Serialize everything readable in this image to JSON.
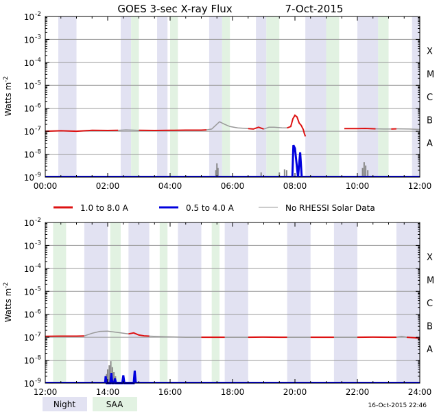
{
  "title": "GOES 3-sec X-ray Flux",
  "date": "7-Oct-2015",
  "timestamp": "16-Oct-2015 22:46",
  "ylabel": "Watts m",
  "ylabel_sup": "-2",
  "colors": {
    "low_channel": "#dd1111",
    "high_channel": "#0000dd",
    "no_rhessi": "#999999",
    "night_band": "#e2e2f2",
    "saa_band": "#e2f2e2",
    "grid": "#999999"
  },
  "legend": {
    "items": [
      {
        "label": "1.0 to 8.0 A",
        "color": "#dd1111"
      },
      {
        "label": "0.5 to 4.0 A",
        "color": "#0000dd"
      },
      {
        "label": "No RHESSI Solar Data",
        "color": "#999999"
      }
    ],
    "night_label": "Night",
    "saa_label": "SAA"
  },
  "chart_data": [
    {
      "type": "line",
      "panel": "top",
      "x_range": [
        "00:00",
        "12:00"
      ],
      "xticks": [
        "00:00",
        "02:00",
        "04:00",
        "06:00",
        "08:00",
        "10:00",
        "12:00"
      ],
      "yscale": "log",
      "ylim": [
        1e-09,
        0.01
      ],
      "yticks": [
        {
          "exp": -2,
          "label": "10",
          "sup": "-2"
        },
        {
          "exp": -3,
          "label": "10",
          "sup": "-3"
        },
        {
          "exp": -4,
          "label": "10",
          "sup": "-4"
        },
        {
          "exp": -5,
          "label": "10",
          "sup": "-5"
        },
        {
          "exp": -6,
          "label": "10",
          "sup": "-6"
        },
        {
          "exp": -7,
          "label": "10",
          "sup": "-7"
        },
        {
          "exp": -8,
          "label": "10",
          "sup": "-8"
        },
        {
          "exp": -9,
          "label": "10",
          "sup": "-9"
        }
      ],
      "flare_classes": [
        {
          "label": "X",
          "exp": -4
        },
        {
          "label": "M",
          "exp": -5
        },
        {
          "label": "C",
          "exp": -6
        },
        {
          "label": "B",
          "exp": -7
        },
        {
          "label": "A",
          "exp": -8
        }
      ],
      "night_bands": [
        [
          "00:25",
          "01:00"
        ],
        [
          "02:25",
          "02:45"
        ],
        [
          "03:35",
          "03:55"
        ],
        [
          "05:15",
          "05:40"
        ],
        [
          "06:45",
          "07:05"
        ],
        [
          "08:20",
          "09:00"
        ],
        [
          "10:00",
          "10:40"
        ],
        [
          "11:45",
          "12:00"
        ]
      ],
      "saa_bands": [
        [
          "02:45",
          "03:00"
        ],
        [
          "04:00",
          "04:15"
        ],
        [
          "05:40",
          "05:55"
        ],
        [
          "07:05",
          "07:30"
        ],
        [
          "09:00",
          "09:25"
        ],
        [
          "10:40",
          "11:00"
        ]
      ],
      "series_low": [
        {
          "name": "1.0 to 8.0 A",
          "status": "solar",
          "points": [
            [
              "00:00",
              1e-07
            ],
            [
              "00:30",
              1.05e-07
            ],
            [
              "01:00",
              1e-07
            ],
            [
              "01:30",
              1.1e-07
            ],
            [
              "02:00",
              1.08e-07
            ],
            [
              "02:20",
              1.1e-07
            ]
          ]
        },
        {
          "name": "1.0 to 8.0 A",
          "status": "solar",
          "points": [
            [
              "03:00",
              1.1e-07
            ],
            [
              "03:30",
              1.08e-07
            ],
            [
              "04:00",
              1.1e-07
            ],
            [
              "04:30",
              1.12e-07
            ],
            [
              "05:00",
              1.12e-07
            ],
            [
              "05:10",
              1.15e-07
            ]
          ]
        },
        {
          "name": "1.0 to 8.0 A",
          "status": "solar",
          "points": [
            [
              "06:30",
              1.3e-07
            ],
            [
              "06:40",
              1.25e-07
            ],
            [
              "06:50",
              1.5e-07
            ],
            [
              "07:00",
              1.25e-07
            ]
          ]
        },
        {
          "name": "1.0 to 8.0 A",
          "status": "solar",
          "points": [
            [
              "07:45",
              1.4e-07
            ],
            [
              "07:52",
              1.6e-07
            ],
            [
              "07:56",
              3.5e-07
            ],
            [
              "08:00",
              5e-07
            ],
            [
              "08:04",
              4.2e-07
            ],
            [
              "08:08",
              2.3e-07
            ],
            [
              "08:12",
              1.8e-07
            ],
            [
              "08:16",
              1.2e-07
            ],
            [
              "08:18",
              8e-08
            ],
            [
              "08:20",
              6e-08
            ]
          ]
        },
        {
          "name": "1.0 to 8.0 A",
          "status": "solar",
          "points": [
            [
              "09:35",
              1.3e-07
            ],
            [
              "10:00",
              1.3e-07
            ],
            [
              "10:15",
              1.33e-07
            ],
            [
              "10:35",
              1.28e-07
            ]
          ]
        },
        {
          "name": "1.0 to 8.0 A",
          "status": "solar",
          "points": [
            [
              "11:05",
              1.25e-07
            ],
            [
              "11:15",
              1.28e-07
            ]
          ]
        }
      ],
      "series_low_norhessi": [
        {
          "points": [
            [
              "02:20",
              1.1e-07
            ],
            [
              "02:35",
              1.15e-07
            ],
            [
              "03:00",
              1.1e-07
            ]
          ]
        },
        {
          "points": [
            [
              "05:10",
              1.15e-07
            ],
            [
              "05:20",
              1.25e-07
            ],
            [
              "05:35",
              2.6e-07
            ],
            [
              "05:45",
              2e-07
            ],
            [
              "05:55",
              1.6e-07
            ],
            [
              "06:10",
              1.4e-07
            ],
            [
              "06:30",
              1.3e-07
            ]
          ]
        },
        {
          "points": [
            [
              "07:00",
              1.25e-07
            ],
            [
              "07:10",
              1.5e-07
            ],
            [
              "07:20",
              1.5e-07
            ],
            [
              "07:35",
              1.42e-07
            ],
            [
              "07:45",
              1.4e-07
            ]
          ]
        },
        {
          "points": [
            [
              "10:35",
              1.28e-07
            ],
            [
              "10:50",
              1.25e-07
            ],
            [
              "11:05",
              1.25e-07
            ]
          ]
        },
        {
          "points": [
            [
              "11:15",
              1.28e-07
            ],
            [
              "11:40",
              1.25e-07
            ],
            [
              "12:00",
              1.2e-07
            ]
          ]
        }
      ],
      "series_high_spikes": [
        {
          "name": "0.5 to 4.0 A",
          "points": [
            [
              "07:55",
              1e-09
            ],
            [
              "07:57",
              2.5e-08
            ],
            [
              "08:00",
              1.8e-08
            ],
            [
              "08:03",
              4e-09
            ],
            [
              "08:06",
              1e-09
            ],
            [
              "08:10",
              1.2e-08
            ],
            [
              "08:13",
              1e-09
            ]
          ]
        }
      ],
      "gray_spikes": [
        [
          "05:28",
          2e-09
        ],
        [
          "05:30",
          4e-09
        ],
        [
          "05:32",
          2.5e-09
        ],
        [
          "06:55",
          1.6e-09
        ],
        [
          "07:30",
          1.6e-09
        ],
        [
          "07:40",
          2.2e-09
        ],
        [
          "07:44",
          2e-09
        ],
        [
          "10:10",
          2.5e-09
        ],
        [
          "10:13",
          4.5e-09
        ],
        [
          "10:16",
          3.2e-09
        ],
        [
          "10:20",
          2e-09
        ]
      ]
    },
    {
      "type": "line",
      "panel": "bottom",
      "x_range": [
        "12:00",
        "24:00"
      ],
      "xticks": [
        "12:00",
        "14:00",
        "16:00",
        "18:00",
        "20:00",
        "22:00",
        "24:00"
      ],
      "yscale": "log",
      "ylim": [
        1e-09,
        0.01
      ],
      "yticks": [
        {
          "exp": -2,
          "label": "10",
          "sup": "-2"
        },
        {
          "exp": -3,
          "label": "10",
          "sup": "-3"
        },
        {
          "exp": -4,
          "label": "10",
          "sup": "-4"
        },
        {
          "exp": -5,
          "label": "10",
          "sup": "-5"
        },
        {
          "exp": -6,
          "label": "10",
          "sup": "-6"
        },
        {
          "exp": -7,
          "label": "10",
          "sup": "-7"
        },
        {
          "exp": -8,
          "label": "10",
          "sup": "-8"
        },
        {
          "exp": -9,
          "label": "10",
          "sup": "-9"
        }
      ],
      "flare_classes": [
        {
          "label": "X",
          "exp": -4
        },
        {
          "label": "M",
          "exp": -5
        },
        {
          "label": "C",
          "exp": -6
        },
        {
          "label": "B",
          "exp": -7
        },
        {
          "label": "A",
          "exp": -8
        }
      ],
      "night_bands": [
        [
          "13:15",
          "14:00"
        ],
        [
          "14:40",
          "15:20"
        ],
        [
          "16:15",
          "17:00"
        ],
        [
          "17:45",
          "18:30"
        ],
        [
          "19:45",
          "20:30"
        ],
        [
          "21:15",
          "22:00"
        ],
        [
          "23:15",
          "24:00"
        ]
      ],
      "saa_bands": [
        [
          "12:15",
          "12:40"
        ],
        [
          "14:05",
          "14:25"
        ],
        [
          "15:40",
          "15:55"
        ],
        [
          "17:20",
          "17:35"
        ]
      ],
      "series_low": [
        {
          "name": "1.0 to 8.0 A",
          "status": "solar",
          "points": [
            [
              "12:00",
              1.1e-07
            ],
            [
              "12:30",
              1.12e-07
            ],
            [
              "13:00",
              1.12e-07
            ],
            [
              "13:15",
              1.14e-07
            ]
          ]
        },
        {
          "name": "1.0 to 8.0 A",
          "status": "solar",
          "points": [
            [
              "14:40",
              1.4e-07
            ],
            [
              "14:50",
              1.55e-07
            ],
            [
              "15:00",
              1.25e-07
            ],
            [
              "15:10",
              1.15e-07
            ],
            [
              "15:20",
              1.12e-07
            ]
          ]
        },
        {
          "name": "1.0 to 8.0 A",
          "status": "solar",
          "points": [
            [
              "17:00",
              1e-07
            ],
            [
              "17:30",
              1e-07
            ],
            [
              "17:45",
              1e-07
            ]
          ]
        },
        {
          "name": "1.0 to 8.0 A",
          "status": "solar",
          "points": [
            [
              "18:30",
              1e-07
            ],
            [
              "19:00",
              1.02e-07
            ],
            [
              "19:30",
              1e-07
            ],
            [
              "19:45",
              1e-07
            ]
          ]
        },
        {
          "name": "1.0 to 8.0 A",
          "status": "solar",
          "points": [
            [
              "20:30",
              1e-07
            ],
            [
              "21:00",
              1e-07
            ],
            [
              "21:15",
              1e-07
            ]
          ]
        },
        {
          "name": "1.0 to 8.0 A",
          "status": "solar",
          "points": [
            [
              "22:00",
              1e-07
            ],
            [
              "22:30",
              1.02e-07
            ],
            [
              "23:00",
              1e-07
            ],
            [
              "23:15",
              1e-07
            ]
          ]
        },
        {
          "name": "1.0 to 8.0 A",
          "status": "solar",
          "points": [
            [
              "23:35",
              1e-07
            ],
            [
              "23:50",
              9.5e-08
            ],
            [
              "24:00",
              9e-08
            ]
          ]
        }
      ],
      "series_low_norhessi": [
        {
          "points": [
            [
              "13:15",
              1.14e-07
            ],
            [
              "13:30",
              1.5e-07
            ],
            [
              "13:45",
              1.8e-07
            ],
            [
              "14:00",
              1.85e-07
            ],
            [
              "14:20",
              1.6e-07
            ],
            [
              "14:40",
              1.4e-07
            ]
          ]
        },
        {
          "points": [
            [
              "15:20",
              1.12e-07
            ],
            [
              "15:50",
              1.05e-07
            ],
            [
              "16:30",
              1e-07
            ],
            [
              "17:00",
              1e-07
            ]
          ]
        },
        {
          "points": [
            [
              "17:45",
              1e-07
            ],
            [
              "18:00",
              1e-07
            ],
            [
              "18:30",
              1e-07
            ]
          ]
        },
        {
          "points": [
            [
              "19:45",
              1e-07
            ],
            [
              "20:15",
              1e-07
            ],
            [
              "20:30",
              1e-07
            ]
          ]
        },
        {
          "points": [
            [
              "21:15",
              1e-07
            ],
            [
              "21:40",
              1e-07
            ],
            [
              "22:00",
              1e-07
            ]
          ]
        },
        {
          "points": [
            [
              "23:15",
              1e-07
            ],
            [
              "23:25",
              1.1e-07
            ],
            [
              "23:35",
              1e-07
            ]
          ]
        }
      ],
      "series_high_spikes": [
        {
          "name": "0.5 to 4.0 A",
          "points": [
            [
              "13:55",
              1e-09
            ],
            [
              "13:56",
              2e-09
            ],
            [
              "13:58",
              1e-09
            ],
            [
              "14:05",
              1e-09
            ],
            [
              "14:07",
              2.8e-09
            ],
            [
              "14:09",
              1e-09
            ],
            [
              "14:12",
              1e-09
            ],
            [
              "14:14",
              1.6e-09
            ],
            [
              "14:16",
              1e-09
            ],
            [
              "14:28",
              1e-09
            ],
            [
              "14:30",
              2.2e-09
            ],
            [
              "14:32",
              1e-09
            ],
            [
              "14:50",
              1e-09
            ],
            [
              "14:52",
              3.5e-09
            ],
            [
              "14:54",
              1e-09
            ]
          ]
        }
      ],
      "gray_spikes": [
        [
          "13:58",
          2.5e-09
        ],
        [
          "14:00",
          4e-09
        ],
        [
          "14:03",
          6e-09
        ],
        [
          "14:06",
          9e-09
        ],
        [
          "14:09",
          5e-09
        ],
        [
          "14:12",
          3e-09
        ],
        [
          "14:15",
          2e-09
        ]
      ]
    }
  ]
}
